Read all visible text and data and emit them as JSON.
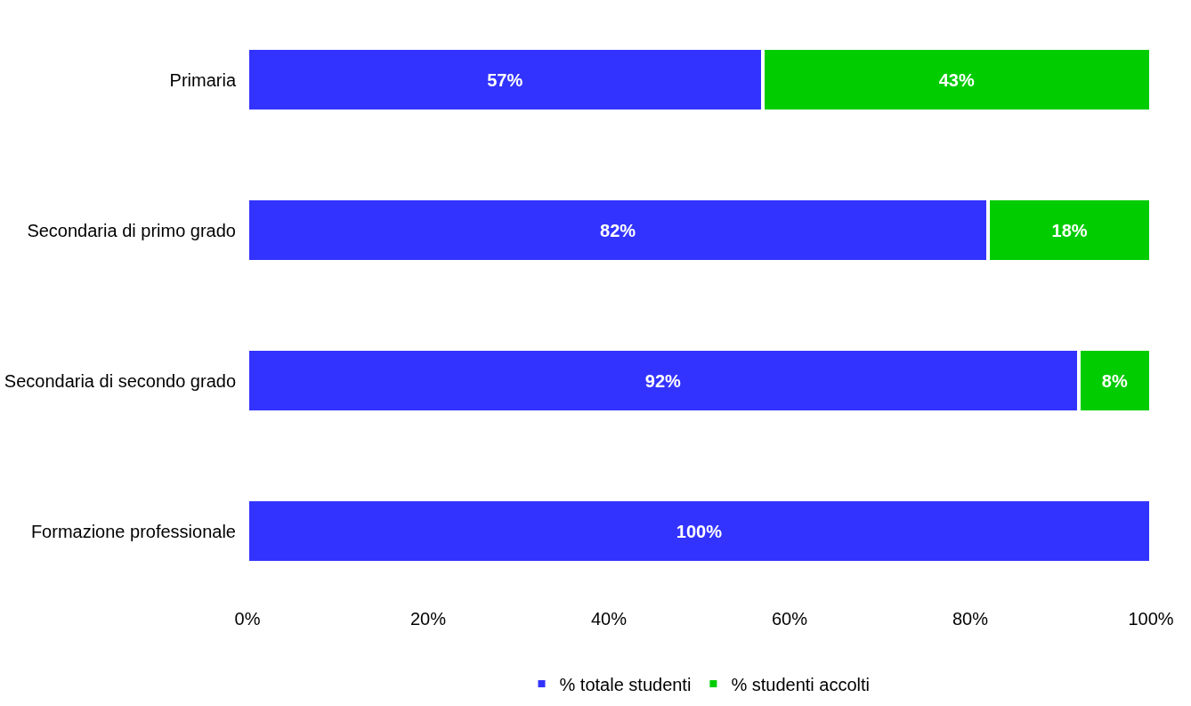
{
  "chart_data": {
    "type": "bar",
    "orientation": "horizontal",
    "stacked": true,
    "categories": [
      "Primaria",
      "Secondaria di primo grado",
      "Secondaria di secondo grado",
      "Formazione professionale"
    ],
    "series": [
      {
        "name": "% totale studenti",
        "color": "#3333ff",
        "values": [
          57,
          82,
          92,
          100
        ],
        "value_labels": [
          "57%",
          "82%",
          "92%",
          "100%"
        ]
      },
      {
        "name": "% studenti accolti",
        "color": "#00cc00",
        "values": [
          43,
          18,
          8,
          null
        ],
        "value_labels": [
          "43%",
          "18%",
          "8%",
          null
        ]
      }
    ],
    "xlim": [
      0,
      100
    ],
    "xticks": [
      {
        "value": 0,
        "label": "0%"
      },
      {
        "value": 20,
        "label": "20%"
      },
      {
        "value": 40,
        "label": "40%"
      },
      {
        "value": 60,
        "label": "60%"
      },
      {
        "value": 80,
        "label": "80%"
      },
      {
        "value": 100,
        "label": "100%"
      }
    ],
    "legend": "bottom"
  }
}
